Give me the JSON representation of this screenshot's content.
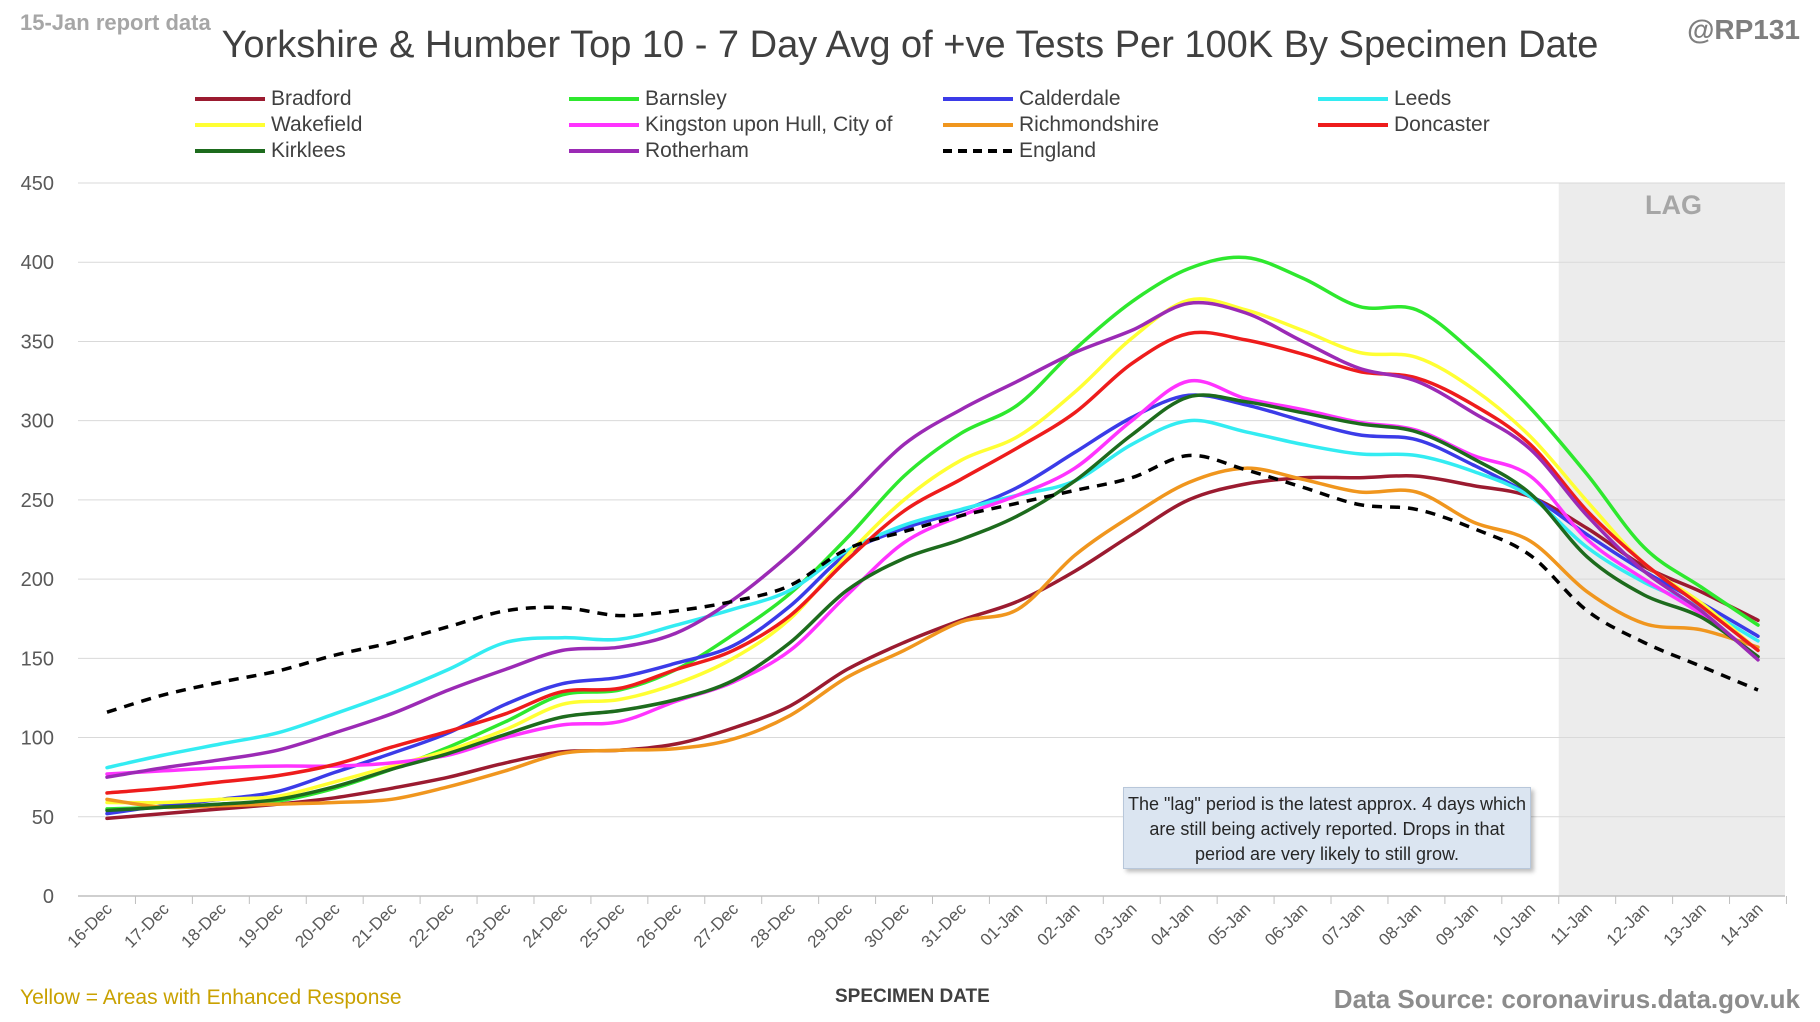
{
  "report_label": "15-Jan report data",
  "author_handle": "@RP131",
  "source_text": "Data Source: coronavirus.data.gov.uk",
  "footnote": "Yellow = Areas with Enhanced Response",
  "lag_label": "LAG",
  "annotation": "The \"lag\" period is the latest approx. 4 days which are still being actively reported. Drops in that period are very likely to still grow.",
  "chart_data": {
    "type": "line",
    "title": "Yorkshire & Humber Top 10 - 7 Day Avg of +ve Tests Per 100K By Specimen Date",
    "xlabel": "SPECIMEN DATE",
    "ylabel": "",
    "ylim": [
      0,
      450
    ],
    "yticks": [
      0,
      50,
      100,
      150,
      200,
      250,
      300,
      350,
      400,
      450
    ],
    "grid": true,
    "legend_position": "top",
    "lag_period": [
      "11-Jan",
      "14-Jan"
    ],
    "categories": [
      "16-Dec",
      "17-Dec",
      "18-Dec",
      "19-Dec",
      "20-Dec",
      "21-Dec",
      "22-Dec",
      "23-Dec",
      "24-Dec",
      "25-Dec",
      "26-Dec",
      "27-Dec",
      "28-Dec",
      "29-Dec",
      "30-Dec",
      "31-Dec",
      "01-Jan",
      "02-Jan",
      "03-Jan",
      "04-Jan",
      "05-Jan",
      "06-Jan",
      "07-Jan",
      "08-Jan",
      "09-Jan",
      "10-Jan",
      "11-Jan",
      "12-Jan",
      "13-Jan",
      "14-Jan"
    ],
    "series": [
      {
        "name": "Bradford",
        "color": "#9b1b30",
        "dash": false,
        "values": [
          49,
          52,
          55,
          58,
          62,
          68,
          75,
          84,
          91,
          92,
          96,
          106,
          120,
          143,
          160,
          174,
          186,
          205,
          228,
          250,
          260,
          264,
          264,
          265,
          259,
          252,
          232,
          208,
          192,
          174
        ]
      },
      {
        "name": "Barnsley",
        "color": "#2ee82e",
        "dash": false,
        "values": [
          55,
          56,
          58,
          60,
          68,
          80,
          94,
          110,
          127,
          130,
          143,
          165,
          191,
          226,
          265,
          292,
          310,
          345,
          375,
          396,
          403,
          390,
          372,
          370,
          343,
          308,
          266,
          220,
          195,
          171
        ]
      },
      {
        "name": "Calderdale",
        "color": "#3b3be8",
        "dash": false,
        "values": [
          52,
          57,
          61,
          66,
          78,
          90,
          103,
          121,
          134,
          138,
          147,
          158,
          183,
          216,
          232,
          243,
          258,
          280,
          302,
          316,
          310,
          300,
          291,
          288,
          272,
          253,
          228,
          205,
          185,
          164
        ]
      },
      {
        "name": "Leeds",
        "color": "#33ecf2",
        "dash": false,
        "values": [
          81,
          89,
          96,
          103,
          115,
          128,
          143,
          160,
          163,
          162,
          171,
          181,
          193,
          218,
          234,
          244,
          253,
          262,
          285,
          300,
          293,
          285,
          279,
          278,
          268,
          252,
          220,
          198,
          182,
          161
        ]
      },
      {
        "name": "Wakefield",
        "color": "#ffff33",
        "dash": false,
        "values": [
          59,
          59,
          61,
          63,
          72,
          82,
          92,
          105,
          121,
          124,
          134,
          150,
          175,
          215,
          250,
          275,
          290,
          318,
          352,
          376,
          370,
          357,
          343,
          340,
          320,
          290,
          249,
          210,
          185,
          155
        ]
      },
      {
        "name": "Kingston upon Hull, City of",
        "color": "#ff33ff",
        "dash": false,
        "values": [
          77,
          79,
          81,
          82,
          82,
          84,
          89,
          100,
          108,
          110,
          123,
          135,
          155,
          190,
          223,
          240,
          253,
          270,
          300,
          325,
          314,
          307,
          299,
          294,
          278,
          265,
          225,
          200,
          178,
          151
        ]
      },
      {
        "name": "Richmondshire",
        "color": "#f0961e",
        "dash": false,
        "values": [
          61,
          56,
          57,
          58,
          59,
          61,
          69,
          79,
          90,
          92,
          93,
          99,
          114,
          138,
          155,
          173,
          181,
          215,
          240,
          261,
          270,
          263,
          255,
          255,
          236,
          224,
          192,
          172,
          168,
          157
        ]
      },
      {
        "name": "Doncaster",
        "color": "#ee1c1c",
        "dash": false,
        "values": [
          65,
          68,
          72,
          76,
          83,
          94,
          104,
          115,
          129,
          131,
          143,
          155,
          177,
          212,
          243,
          263,
          283,
          305,
          336,
          355,
          351,
          342,
          331,
          327,
          310,
          285,
          243,
          210,
          183,
          155
        ]
      },
      {
        "name": "Kirklees",
        "color": "#1d6b1d",
        "dash": false,
        "values": [
          54,
          56,
          58,
          61,
          69,
          80,
          90,
          102,
          113,
          117,
          124,
          136,
          160,
          193,
          213,
          225,
          240,
          262,
          291,
          315,
          312,
          305,
          298,
          293,
          276,
          254,
          214,
          190,
          176,
          151
        ]
      },
      {
        "name": "Rotherham",
        "color": "#9b2ab5",
        "dash": false,
        "values": [
          75,
          81,
          86,
          92,
          103,
          115,
          130,
          143,
          155,
          157,
          166,
          187,
          216,
          250,
          285,
          307,
          325,
          343,
          357,
          374,
          368,
          350,
          333,
          325,
          305,
          282,
          240,
          205,
          180,
          149
        ]
      },
      {
        "name": "England",
        "color": "#000000",
        "dash": true,
        "values": [
          116,
          127,
          135,
          142,
          152,
          160,
          170,
          180,
          182,
          177,
          180,
          186,
          196,
          219,
          230,
          240,
          248,
          256,
          264,
          278,
          269,
          258,
          247,
          244,
          232,
          215,
          180,
          160,
          145,
          130
        ]
      }
    ]
  }
}
